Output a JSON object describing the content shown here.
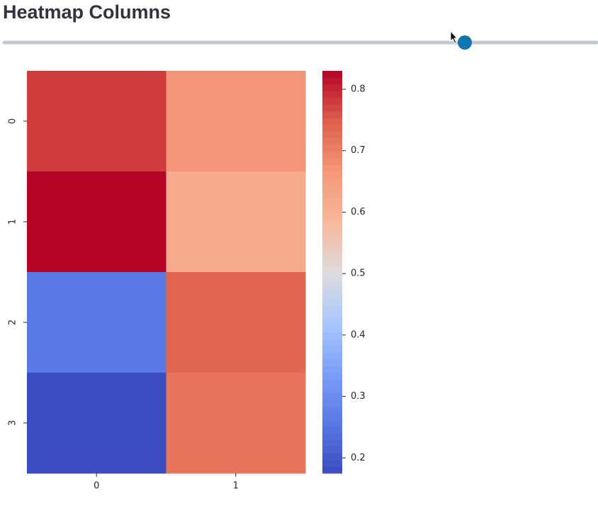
{
  "header": {
    "title": "Heatmap Columns"
  },
  "chart_data": {
    "type": "heatmap",
    "x_categories": [
      "0",
      "1"
    ],
    "y_categories": [
      "0",
      "1",
      "2",
      "3"
    ],
    "values": [
      [
        0.78,
        0.67
      ],
      [
        0.83,
        0.62
      ],
      [
        0.26,
        0.74
      ],
      [
        0.175,
        0.72
      ]
    ],
    "clim": [
      0.175,
      0.83
    ],
    "colorbar_ticks": [
      0.2,
      0.3,
      0.4,
      0.5,
      0.6,
      0.7,
      0.8
    ],
    "colormap": [
      "#3b4cc0",
      "#5a78e4",
      "#7b9ff9",
      "#aac7fd",
      "#dddcdc",
      "#f7b89c",
      "#f4987a",
      "#de604d",
      "#b40426"
    ]
  }
}
